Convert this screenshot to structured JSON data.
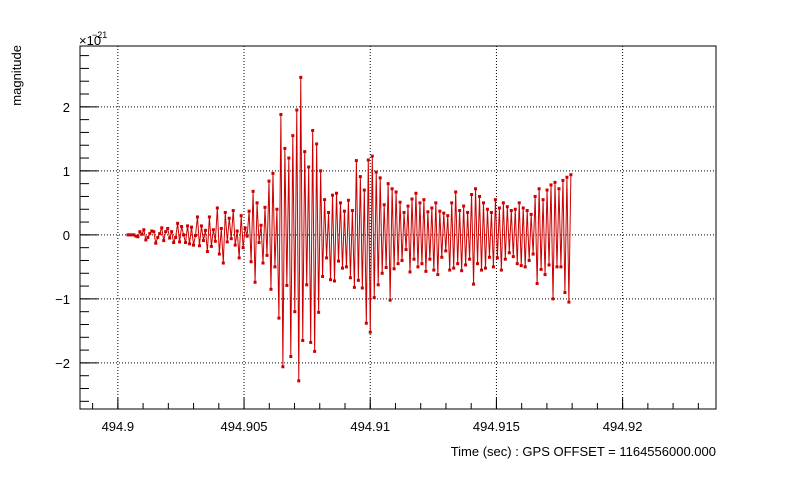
{
  "chart_data": {
    "type": "line",
    "title": "",
    "xlabel": "Time (sec) : GPS OFFSET = 1164556000.000",
    "ylabel": "magnitude",
    "y_exponent_base": "×10",
    "y_exponent_power": "−21",
    "xlim": [
      494.8985,
      494.9237
    ],
    "ylim": [
      -2.72,
      2.95
    ],
    "grid": true,
    "legend": "none",
    "x_ticks": [
      494.9,
      494.905,
      494.91,
      494.915,
      494.92
    ],
    "x_tick_labels": [
      "494.9",
      "494.905",
      "494.91",
      "494.915",
      "494.92"
    ],
    "y_ticks": [
      -2,
      -1,
      0,
      1,
      2
    ],
    "y_tick_labels": [
      "−2",
      "−1",
      "0",
      "1",
      "2"
    ],
    "series_color": "#cc0000",
    "series": [
      {
        "x_start": 494.9004,
        "x_step": 7.87e-05,
        "values": [
          0.0,
          0.0,
          0.0,
          0.0,
          -0.02,
          -0.03,
          0.05,
          0.01,
          0.08,
          -0.08,
          -0.04,
          0.02,
          0.06,
          0.05,
          -0.13,
          -0.04,
          0.02,
          0.11,
          -0.09,
          0.05,
          0.1,
          -0.05,
          0.05,
          -0.12,
          -0.04,
          0.18,
          -0.11,
          0.13,
          0.0,
          -0.12,
          0.14,
          -0.14,
          0.12,
          -0.16,
          -0.01,
          0.28,
          -0.17,
          0.14,
          -0.09,
          0.07,
          -0.26,
          0.28,
          -0.18,
          0.08,
          -0.1,
          0.42,
          -0.3,
          0.1,
          -0.44,
          0.35,
          -0.11,
          0.26,
          -0.06,
          0.38,
          -0.16,
          0.06,
          -0.36,
          0.3,
          -0.2,
          0.11,
          -0.02,
          0.37,
          -0.42,
          0.68,
          -0.74,
          0.5,
          -0.12,
          0.15,
          -0.44,
          0.43,
          -0.32,
          0.84,
          -0.85,
          0.96,
          -0.5,
          0.4,
          -1.3,
          1.88,
          -2.06,
          1.35,
          -0.79,
          1.2,
          -1.9,
          1.55,
          -1.2,
          1.95,
          -2.28,
          2.46,
          -1.65,
          1.3,
          -0.78,
          1.06,
          -1.68,
          1.63,
          -1.82,
          1.42,
          -1.21,
          1.0,
          -0.65,
          0.55,
          -0.36,
          0.35,
          -0.7,
          0.62,
          -0.72,
          0.65,
          -0.41,
          0.5,
          -0.52,
          0.37,
          -0.5,
          0.54,
          -0.67,
          0.38,
          -0.82,
          1.16,
          -0.71,
          0.91,
          -0.83,
          0.7,
          -1.38,
          1.17,
          -1.52,
          1.23,
          -0.98,
          0.98,
          -0.78,
          0.89,
          -0.6,
          0.47,
          -0.51,
          0.8,
          -1.02,
          0.72,
          -0.53,
          0.67,
          -0.45,
          0.51,
          -0.4,
          0.35,
          -0.23,
          0.45,
          -0.58,
          0.56,
          -0.38,
          0.65,
          -0.5,
          0.5,
          -0.45,
          0.55,
          -0.57,
          0.36,
          -0.38,
          0.42,
          -0.55,
          0.5,
          -0.62,
          0.37,
          -0.35,
          0.34,
          -0.25,
          0.3,
          -0.55,
          0.5,
          -0.52,
          0.67,
          -0.45,
          0.38,
          -0.56,
          0.45,
          -0.47,
          0.35,
          -0.38,
          0.63,
          -0.77,
          0.72,
          -0.45,
          0.6,
          -0.55,
          0.5,
          -0.52,
          0.4,
          -0.35,
          0.35,
          -0.5,
          0.55,
          -0.36,
          0.42,
          -0.55,
          0.5,
          -0.38,
          0.44,
          -0.28,
          0.38,
          -0.34,
          0.4,
          -0.45,
          0.5,
          -0.48,
          0.42,
          -0.5,
          0.38,
          -0.4,
          0.32,
          -0.3,
          0.6,
          -0.76,
          0.72,
          -0.54,
          0.55,
          -0.62,
          0.7,
          -0.47,
          0.78,
          -1.0,
          0.82,
          -0.5,
          0.72,
          -0.5,
          0.85,
          -0.9,
          0.9,
          -1.05,
          0.94
        ]
      }
    ]
  }
}
